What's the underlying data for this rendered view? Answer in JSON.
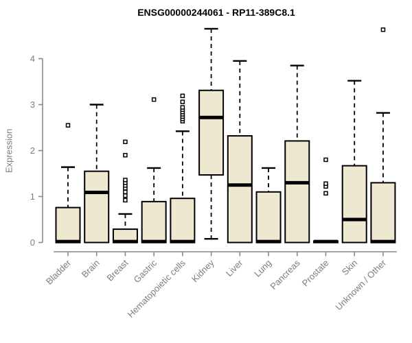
{
  "title": "ENSG00000244061 - RP11-389C8.1",
  "colors": {
    "background": "#ffffff",
    "box_fill": "#ede8cf",
    "box_border": "#000000",
    "median": "#000000",
    "whisker": "#000000",
    "axis_line": "#888888",
    "axis_text": "#7d7d7d",
    "title_text": "#000000"
  },
  "chart_data": {
    "type": "boxplot",
    "title": "ENSG00000244061 - RP11-389C8.1",
    "xlabel": "",
    "ylabel": "Expression",
    "ylim": [
      0,
      4
    ],
    "yticks": [
      "0",
      "1",
      "2",
      "3",
      "4"
    ],
    "grid": "off",
    "legend": "none",
    "categories": [
      "Bladder",
      "Brain",
      "Breast",
      "Gastric",
      "Hematopoietic cells",
      "Kidney",
      "Liver",
      "Lung",
      "Pancreas",
      "Prostate",
      "Skin",
      "Unknown / Other"
    ],
    "boxes": [
      {
        "label": "Bladder",
        "min": 0,
        "q1": 0,
        "median": 0.02,
        "q3": 0.76,
        "max": 1.64,
        "outliers": [
          2.55
        ]
      },
      {
        "label": "Brain",
        "min": 0,
        "q1": 0,
        "median": 1.09,
        "q3": 1.55,
        "max": 3.0,
        "outliers": []
      },
      {
        "label": "Breast",
        "min": 0,
        "q1": 0,
        "median": 0.02,
        "q3": 0.29,
        "max": 0.62,
        "outliers": [
          0.92,
          1.02,
          1.1,
          1.18,
          1.24,
          1.3,
          1.36,
          1.9,
          2.19
        ]
      },
      {
        "label": "Gastric",
        "min": 0,
        "q1": 0,
        "median": 0.02,
        "q3": 0.89,
        "max": 1.62,
        "outliers": [
          3.11
        ]
      },
      {
        "label": "Hematopoietic cells",
        "min": 0,
        "q1": 0,
        "median": 0.02,
        "q3": 0.96,
        "max": 2.42,
        "outliers": [
          2.64,
          2.69,
          2.74,
          2.79,
          2.84,
          2.89,
          2.94,
          3.06,
          3.19
        ]
      },
      {
        "label": "Kidney",
        "min": 0.08,
        "q1": 1.47,
        "median": 2.72,
        "q3": 3.31,
        "max": 4.65,
        "outliers": []
      },
      {
        "label": "Liver",
        "min": 0,
        "q1": 0,
        "median": 1.25,
        "q3": 2.32,
        "max": 3.95,
        "outliers": []
      },
      {
        "label": "Lung",
        "min": 0,
        "q1": 0,
        "median": 0.02,
        "q3": 1.1,
        "max": 1.62,
        "outliers": []
      },
      {
        "label": "Pancreas",
        "min": 0,
        "q1": 0,
        "median": 1.3,
        "q3": 2.21,
        "max": 3.85,
        "outliers": []
      },
      {
        "label": "Prostate",
        "min": 0,
        "q1": 0,
        "median": 0.02,
        "q3": 0.03,
        "max": 0.05,
        "outliers": [
          1.07,
          1.22,
          1.28,
          1.8
        ]
      },
      {
        "label": "Skin",
        "min": 0,
        "q1": 0,
        "median": 0.5,
        "q3": 1.67,
        "max": 3.52,
        "outliers": []
      },
      {
        "label": "Unknown / Other",
        "min": 0,
        "q1": 0,
        "median": 0.02,
        "q3": 1.3,
        "max": 2.82,
        "outliers": [
          4.63
        ]
      }
    ]
  }
}
